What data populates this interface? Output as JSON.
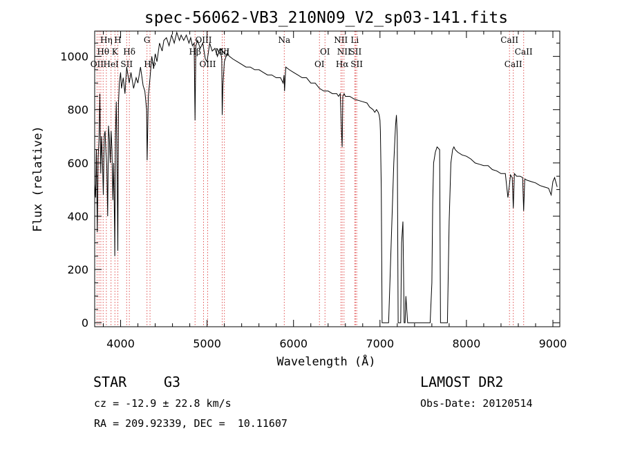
{
  "chart_data": {
    "type": "line",
    "title": "spec-56062-VB3_210N09_V2_sp03-141.fits",
    "xlabel": "Wavelength (Å)",
    "ylabel": "Flux (relative)",
    "xlim": [
      3700,
      9080
    ],
    "ylim": [
      -15,
      1095
    ],
    "xticks": [
      4000,
      5000,
      6000,
      7000,
      8000,
      9000
    ],
    "yticks": [
      0,
      200,
      400,
      600,
      800,
      1000
    ],
    "grid": false,
    "series": [
      {
        "x": [
          3700,
          3710,
          3720,
          3730,
          3740,
          3750,
          3760,
          3770,
          3780,
          3790,
          3800,
          3810,
          3820,
          3830,
          3840,
          3850,
          3860,
          3870,
          3880,
          3890,
          3900,
          3910,
          3920,
          3930,
          3933,
          3940,
          3950,
          3960,
          3968,
          3975,
          3985,
          4000,
          4010,
          4030,
          4050,
          4070,
          4100,
          4120,
          4150,
          4180,
          4200,
          4230,
          4260,
          4280,
          4300,
          4307,
          4320,
          4340,
          4360,
          4380,
          4400,
          4420,
          4450,
          4480,
          4500,
          4530,
          4560,
          4590,
          4620,
          4650,
          4680,
          4700,
          4730,
          4760,
          4790,
          4810,
          4830,
          4850,
          4861,
          4870,
          4890,
          4920,
          4950,
          4980,
          5000,
          5030,
          5060,
          5090,
          5120,
          5150,
          5170,
          5175,
          5183,
          5200,
          5230,
          5260,
          5300,
          5350,
          5400,
          5450,
          5500,
          5550,
          5600,
          5650,
          5700,
          5750,
          5800,
          5850,
          5880,
          5890,
          5896,
          5910,
          5950,
          6000,
          6050,
          6100,
          6150,
          6200,
          6250,
          6300,
          6350,
          6400,
          6450,
          6500,
          6520,
          6540,
          6555,
          6563,
          6570,
          6585,
          6600,
          6650,
          6700,
          6750,
          6800,
          6850,
          6880,
          6900,
          6920,
          6940,
          6960,
          6980,
          6990,
          7000,
          7005,
          7015,
          7025,
          7040,
          7060,
          7080,
          7100,
          7120,
          7140,
          7160,
          7180,
          7190,
          7200,
          7210,
          7230,
          7240,
          7250,
          7265,
          7280,
          7290,
          7300,
          7320,
          7350,
          7400,
          7450,
          7500,
          7550,
          7580,
          7600,
          7610,
          7620,
          7640,
          7660,
          7690,
          7700,
          7720,
          7740,
          7760,
          7780,
          7800,
          7820,
          7840,
          7855,
          7870,
          7900,
          7950,
          8000,
          8050,
          8100,
          8150,
          8200,
          8250,
          8300,
          8350,
          8400,
          8450,
          8480,
          8498,
          8510,
          8530,
          8542,
          8555,
          8580,
          8620,
          8650,
          8662,
          8675,
          8700,
          8750,
          8800,
          8850,
          8900,
          8950,
          8980,
          9000,
          9020,
          9050
        ],
        "y": [
          520,
          470,
          650,
          340,
          620,
          690,
          860,
          560,
          700,
          610,
          480,
          700,
          720,
          640,
          590,
          400,
          740,
          690,
          600,
          720,
          650,
          460,
          600,
          350,
          250,
          700,
          830,
          560,
          270,
          820,
          900,
          940,
          880,
          920,
          860,
          960,
          900,
          940,
          880,
          920,
          900,
          960,
          890,
          870,
          800,
          610,
          850,
          920,
          1000,
          960,
          1010,
          980,
          1050,
          1020,
          1060,
          1070,
          1040,
          1080,
          1050,
          1090,
          1060,
          1080,
          1060,
          1080,
          1050,
          1070,
          1040,
          1050,
          760,
          1040,
          1060,
          1030,
          1050,
          990,
          980,
          1050,
          1020,
          1030,
          1000,
          1030,
          990,
          780,
          890,
          980,
          1010,
          1000,
          990,
          980,
          970,
          960,
          960,
          950,
          950,
          940,
          930,
          930,
          920,
          920,
          900,
          930,
          870,
          960,
          950,
          940,
          930,
          920,
          920,
          900,
          900,
          880,
          870,
          870,
          860,
          860,
          850,
          860,
          720,
          660,
          850,
          860,
          850,
          850,
          840,
          835,
          830,
          825,
          810,
          805,
          800,
          790,
          800,
          790,
          780,
          760,
          720,
          500,
          0,
          0,
          0,
          0,
          0,
          200,
          400,
          600,
          740,
          780,
          700,
          0,
          0,
          0,
          300,
          380,
          0,
          0,
          100,
          0,
          0,
          0,
          0,
          0,
          0,
          0,
          150,
          450,
          600,
          640,
          660,
          650,
          0,
          0,
          0,
          0,
          0,
          380,
          600,
          650,
          660,
          650,
          640,
          630,
          625,
          615,
          600,
          595,
          590,
          590,
          575,
          570,
          560,
          560,
          470,
          520,
          555,
          545,
          430,
          560,
          550,
          550,
          545,
          420,
          540,
          535,
          530,
          525,
          515,
          510,
          505,
          480,
          530,
          545,
          510
        ]
      }
    ],
    "line_labels": [
      {
        "label": "OII",
        "at": 3727,
        "row": 3
      },
      {
        "label": "Hη",
        "at": 3835,
        "row": 1
      },
      {
        "label": "Hθ",
        "at": 3798,
        "row": 2
      },
      {
        "label": "HeI",
        "at": 3889,
        "row": 3
      },
      {
        "label": "K",
        "at": 3934,
        "row": 2
      },
      {
        "label": "H",
        "at": 3968,
        "row": 1
      },
      {
        "label": "SII",
        "at": 4070,
        "row": 3
      },
      {
        "label": "Hδ",
        "at": 4101,
        "row": 2
      },
      {
        "label": "G",
        "at": 4305,
        "row": 1
      },
      {
        "label": "Hγ",
        "at": 4340,
        "row": 3
      },
      {
        "label": "OIII",
        "at": 4959,
        "row": 1
      },
      {
        "label": "Hβ",
        "at": 4861,
        "row": 2
      },
      {
        "label": "Mg",
        "at": 5175,
        "row": 2
      },
      {
        "label": "NI",
        "at": 5200,
        "row": 2
      },
      {
        "label": "OIII",
        "at": 5007,
        "row": 3
      },
      {
        "label": "Na",
        "at": 5893,
        "row": 1
      },
      {
        "label": "OI",
        "at": 6300,
        "row": 3
      },
      {
        "label": "OI",
        "at": 6364,
        "row": 2
      },
      {
        "label": "NII",
        "at": 6548,
        "row": 1
      },
      {
        "label": "NII",
        "at": 6584,
        "row": 2
      },
      {
        "label": "Hα",
        "at": 6563,
        "row": 3
      },
      {
        "label": "Li",
        "at": 6708,
        "row": 1
      },
      {
        "label": "SII",
        "at": 6717,
        "row": 2
      },
      {
        "label": "SII",
        "at": 6731,
        "row": 3
      },
      {
        "label": "CaII",
        "at": 8498,
        "row": 1
      },
      {
        "label": "CaII",
        "at": 8542,
        "row": 3
      },
      {
        "label": "CaII",
        "at": 8662,
        "row": 2
      }
    ],
    "marker_lines": [
      3727,
      3750,
      3771,
      3798,
      3835,
      3889,
      3934,
      3968,
      4070,
      4101,
      4305,
      4340,
      4861,
      4959,
      5007,
      5175,
      5200,
      5893,
      6300,
      6364,
      6548,
      6563,
      6584,
      6708,
      6717,
      6731,
      8498,
      8542,
      8662
    ]
  },
  "info": {
    "object_class": "STAR",
    "subclass": "G3",
    "survey": "LAMOST DR2",
    "redshift": "cz = -12.9 ± 22.8 km/s",
    "obs_date": "Obs-Date: 20120514",
    "coords": "RA = 209.92339, DEC =  10.11607"
  }
}
